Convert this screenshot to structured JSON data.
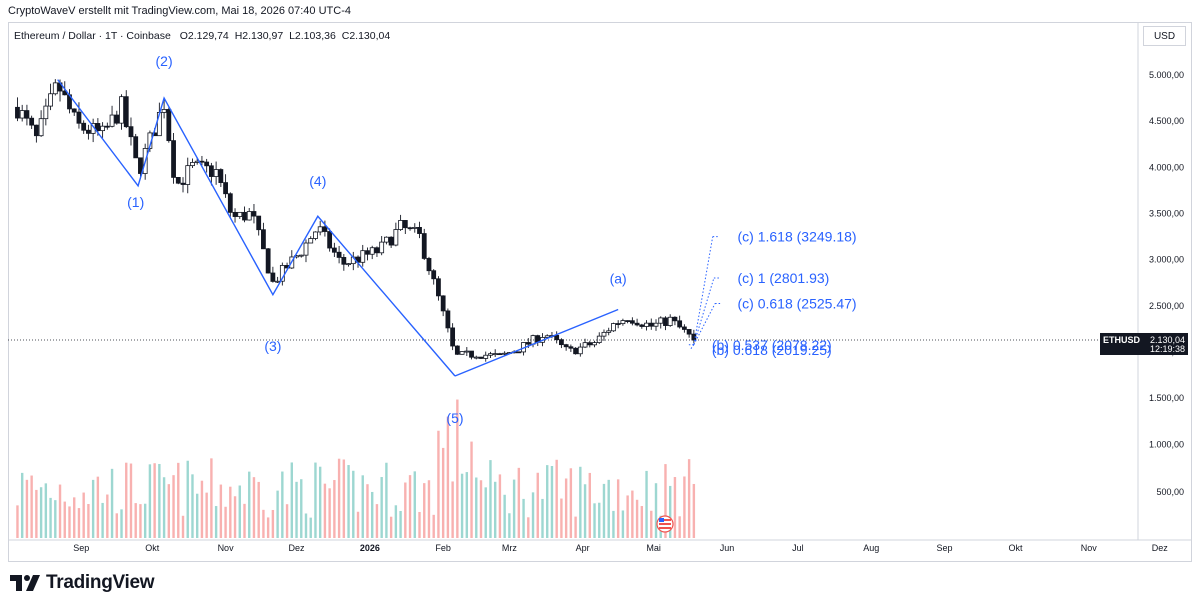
{
  "header": {
    "credit": "CryptoWaveV erstellt mit TradingView.com, Mai 18, 2026 07:40 UTC-4"
  },
  "symbol": {
    "name": "Ethereum / Dollar · 1T · Coinbase",
    "ohlc": [
      {
        "key": "O",
        "value": "2.129,74"
      },
      {
        "key": "H",
        "value": "2.130,97"
      },
      {
        "key": "L",
        "value": "2.103,36"
      },
      {
        "key": "C",
        "value": "2.130,04"
      }
    ]
  },
  "currency": "USD",
  "price_tag": {
    "symbol": "ETHUSD",
    "price": "2.130,04",
    "countdown": "12:19:38"
  },
  "brand": {
    "name": "TradingView"
  },
  "colors": {
    "wave": "#2962ff",
    "up": "#26a69a",
    "down": "#ef5350",
    "candle": "#131722"
  },
  "chart_data": {
    "type": "candlestick",
    "price_axis": {
      "range": [
        1000,
        5400
      ],
      "ticks": [
        {
          "value": 5000,
          "label": "5.000,00"
        },
        {
          "value": 4500,
          "label": "4.500,00"
        },
        {
          "value": 4000,
          "label": "4.000,00"
        },
        {
          "value": 3500,
          "label": "3.500,00"
        },
        {
          "value": 3000,
          "label": "3.000,00"
        },
        {
          "value": 2500,
          "label": "2.500,00"
        },
        {
          "value": 2000,
          "label": "2.000,00"
        },
        {
          "value": 1500,
          "label": "1.500,00"
        },
        {
          "value": 1000,
          "label": "1.000,00"
        },
        {
          "value": 500,
          "label": "500,00"
        }
      ]
    },
    "time_axis": {
      "ticks": [
        {
          "date": "2025-09-01",
          "label": "Sep",
          "bold": false
        },
        {
          "date": "2025-10-01",
          "label": "Okt",
          "bold": false
        },
        {
          "date": "2025-11-01",
          "label": "Nov",
          "bold": false
        },
        {
          "date": "2025-12-01",
          "label": "Dez",
          "bold": false
        },
        {
          "date": "2026-01-01",
          "label": "2026",
          "bold": true
        },
        {
          "date": "2026-02-01",
          "label": "Feb",
          "bold": false
        },
        {
          "date": "2026-03-01",
          "label": "Mrz",
          "bold": false
        },
        {
          "date": "2026-04-01",
          "label": "Apr",
          "bold": false
        },
        {
          "date": "2026-05-01",
          "label": "Mai",
          "bold": false
        },
        {
          "date": "2026-06-01",
          "label": "Jun",
          "bold": false
        },
        {
          "date": "2026-07-01",
          "label": "Jul",
          "bold": false
        },
        {
          "date": "2026-08-01",
          "label": "Aug",
          "bold": false
        },
        {
          "date": "2026-09-01",
          "label": "Sep",
          "bold": false
        },
        {
          "date": "2026-10-01",
          "label": "Okt",
          "bold": false
        },
        {
          "date": "2026-11-01",
          "label": "Nov",
          "bold": false
        },
        {
          "date": "2026-12-01",
          "label": "Dez",
          "bold": false
        }
      ]
    },
    "last_price": 2130.04,
    "price_path": [
      {
        "date": "2025-08-05",
        "price": 4650
      },
      {
        "date": "2025-08-13",
        "price": 4300
      },
      {
        "date": "2025-08-22",
        "price": 4900
      },
      {
        "date": "2025-08-30",
        "price": 4450
      },
      {
        "date": "2025-09-10",
        "price": 4350
      },
      {
        "date": "2025-09-18",
        "price": 4650
      },
      {
        "date": "2025-09-25",
        "price": 3950
      },
      {
        "date": "2025-10-06",
        "price": 4700
      },
      {
        "date": "2025-10-11",
        "price": 3800
      },
      {
        "date": "2025-10-18",
        "price": 4000
      },
      {
        "date": "2025-10-28",
        "price": 3950
      },
      {
        "date": "2025-11-04",
        "price": 3450
      },
      {
        "date": "2025-11-12",
        "price": 3500
      },
      {
        "date": "2025-11-21",
        "price": 2750
      },
      {
        "date": "2025-12-03",
        "price": 3100
      },
      {
        "date": "2025-12-10",
        "price": 3350
      },
      {
        "date": "2025-12-20",
        "price": 2950
      },
      {
        "date": "2026-01-05",
        "price": 3100
      },
      {
        "date": "2026-01-14",
        "price": 3350
      },
      {
        "date": "2026-01-22",
        "price": 3250
      },
      {
        "date": "2026-01-31",
        "price": 2500
      },
      {
        "date": "2026-02-06",
        "price": 1950
      },
      {
        "date": "2026-02-15",
        "price": 1980
      },
      {
        "date": "2026-02-25",
        "price": 1950
      },
      {
        "date": "2026-03-06",
        "price": 2050
      },
      {
        "date": "2026-03-16",
        "price": 2200
      },
      {
        "date": "2026-03-26",
        "price": 2000
      },
      {
        "date": "2026-04-06",
        "price": 2100
      },
      {
        "date": "2026-04-14",
        "price": 2300
      },
      {
        "date": "2026-04-20",
        "price": 2380
      },
      {
        "date": "2026-04-30",
        "price": 2280
      },
      {
        "date": "2026-05-08",
        "price": 2350
      },
      {
        "date": "2026-05-18",
        "price": 2130
      }
    ],
    "wave_lines": [
      {
        "date": "2025-08-22",
        "price": 4950
      },
      {
        "date": "2025-09-25",
        "price": 3800
      },
      {
        "date": "2025-10-06",
        "price": 4750
      },
      {
        "date": "2025-11-21",
        "price": 2620
      },
      {
        "date": "2025-12-10",
        "price": 3470
      },
      {
        "date": "2026-02-06",
        "price": 1740
      }
    ],
    "abc_line": [
      {
        "date": "2026-02-06",
        "price": 1740
      },
      {
        "date": "2026-04-16",
        "price": 2460
      }
    ],
    "wave_labels": [
      {
        "text": "(1)",
        "date": "2025-09-24",
        "price": 3570
      },
      {
        "text": "(2)",
        "date": "2025-10-06",
        "price": 5100
      },
      {
        "text": "(3)",
        "date": "2025-11-21",
        "price": 2010
      },
      {
        "text": "(4)",
        "date": "2025-12-10",
        "price": 3800
      },
      {
        "text": "(5)",
        "date": "2026-02-06",
        "price": 1230
      },
      {
        "text": "(a)",
        "date": "2026-04-16",
        "price": 2740
      }
    ],
    "fib_levels": [
      {
        "label": "(c) 1.618 (3249.18)",
        "price": 3249.18
      },
      {
        "label": "(c) 1 (2801.93)",
        "price": 2801.93
      },
      {
        "label": "(c) 0.618 (2525.47)",
        "price": 2525.47
      },
      {
        "label": "(b) 0.537 (2078.22)",
        "price": 2078.22
      },
      {
        "label": "(b) 0.618 (2019.25)",
        "price": 2019.25
      }
    ],
    "projection_origin": {
      "date": "2026-05-18",
      "price": 2080
    },
    "projection_end_date": "2026-05-28"
  }
}
